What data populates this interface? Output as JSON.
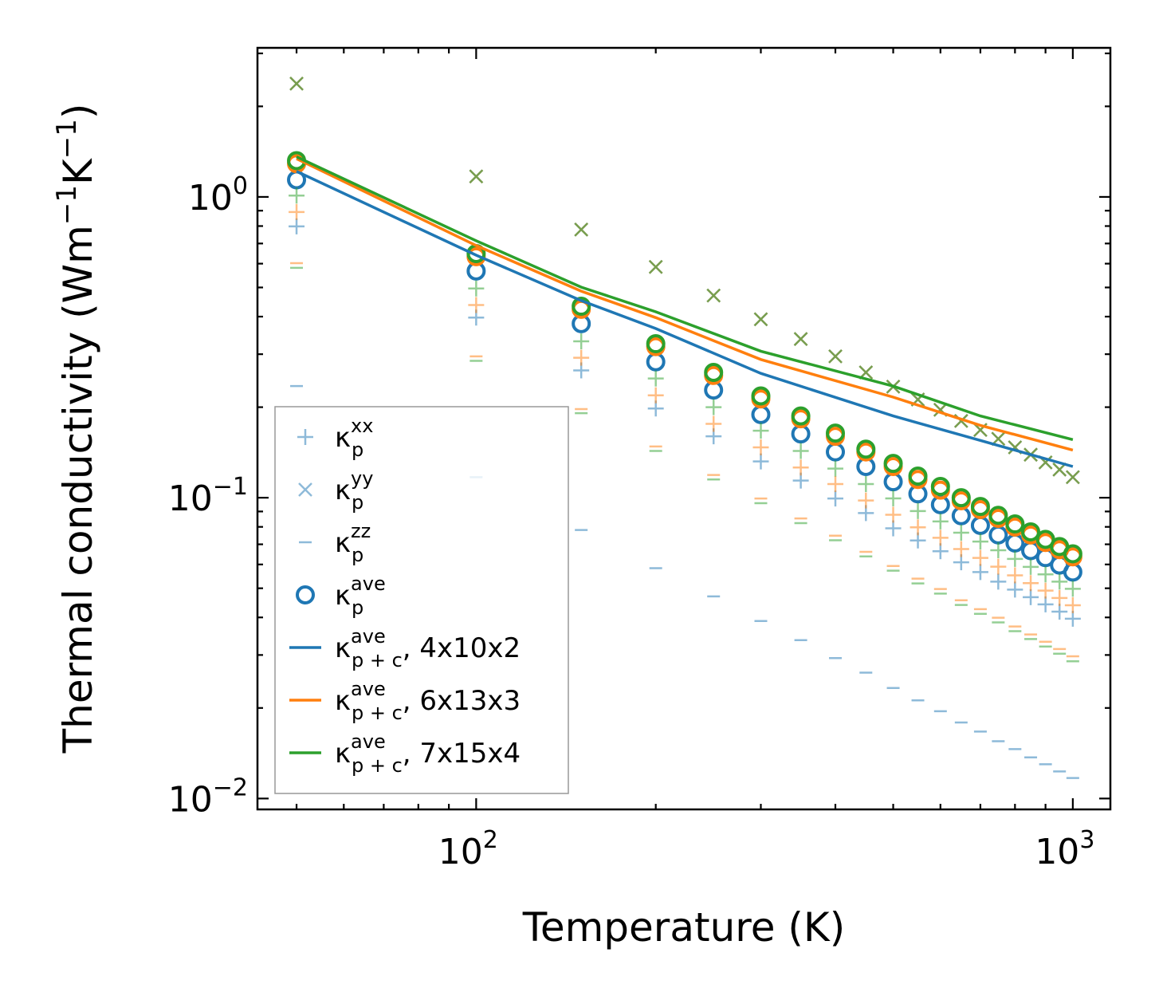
{
  "chart_data": {
    "type": "scatter",
    "title": "",
    "xlabel": "Temperature (K)",
    "ylabel": {
      "main": "Thermal conductivity (Wm",
      "sup1": "−1",
      "mid": "K",
      "sup2": "−1",
      "end": ")"
    },
    "xscale": "log",
    "yscale": "log",
    "xlim": [
      43,
      1156
    ],
    "ylim": [
      0.0092,
      3.13
    ],
    "grid": false,
    "legend_placement": "lower-left",
    "x_ticks": [
      {
        "value": 100,
        "base": "10",
        "exp": "2"
      },
      {
        "value": 1000,
        "base": "10",
        "exp": "3"
      }
    ],
    "y_ticks": [
      {
        "value": 1,
        "base": "10",
        "exp": "0"
      },
      {
        "value": 0.1,
        "base": "10",
        "exp": "−1"
      },
      {
        "value": 0.01,
        "base": "10",
        "exp": "−2"
      }
    ],
    "colors": {
      "blue": "#1f77b4",
      "orange": "#ff7f0e",
      "green": "#2ca02c"
    },
    "x": [
      50,
      100,
      150,
      200,
      250,
      300,
      350,
      400,
      450,
      500,
      550,
      600,
      650,
      700,
      750,
      800,
      850,
      900,
      950,
      1000
    ],
    "series": [
      {
        "name": "kxx 4x10x2",
        "color": "blue",
        "marker": "plus",
        "values": [
          0.798,
          0.397,
          0.265,
          0.198,
          0.16,
          0.132,
          0.114,
          0.0994,
          0.0889,
          0.0791,
          0.0721,
          0.0664,
          0.061,
          0.0566,
          0.0526,
          0.0495,
          0.0467,
          0.0442,
          0.0418,
          0.0396
        ]
      },
      {
        "name": "kyy 4x10x2",
        "color": "blue",
        "marker": "x",
        "values": [
          2.38,
          1.17,
          0.779,
          0.585,
          0.47,
          0.392,
          0.337,
          0.295,
          0.261,
          0.234,
          0.212,
          0.196,
          0.18,
          0.168,
          0.157,
          0.147,
          0.139,
          0.131,
          0.124,
          0.117
        ]
      },
      {
        "name": "kzz 4x10x2",
        "color": "blue",
        "marker": "dash",
        "values": [
          0.235,
          0.117,
          0.0781,
          0.0583,
          0.047,
          0.0389,
          0.0336,
          0.0293,
          0.0262,
          0.0233,
          0.0212,
          0.0195,
          0.0179,
          0.0167,
          0.0155,
          0.0146,
          0.0137,
          0.013,
          0.0123,
          0.0117
        ]
      },
      {
        "name": "kave 4x10x2",
        "color": "blue",
        "marker": "circle",
        "values": [
          1.14,
          0.567,
          0.379,
          0.283,
          0.228,
          0.189,
          0.163,
          0.142,
          0.127,
          0.113,
          0.103,
          0.0948,
          0.0871,
          0.0809,
          0.0752,
          0.0707,
          0.0667,
          0.0632,
          0.0597,
          0.0566
        ]
      },
      {
        "name": "kxx 6x13x3",
        "color": "orange",
        "marker": "plus",
        "values": [
          0.891,
          0.437,
          0.292,
          0.219,
          0.176,
          0.147,
          0.126,
          0.111,
          0.0979,
          0.0878,
          0.0797,
          0.0736,
          0.0675,
          0.0631,
          0.059,
          0.0552,
          0.052,
          0.0491,
          0.0464,
          0.0439
        ]
      },
      {
        "name": "kyy 6x13x3",
        "color": "orange",
        "marker": "x",
        "values": [
          2.38,
          1.17,
          0.779,
          0.585,
          0.47,
          0.392,
          0.337,
          0.295,
          0.261,
          0.234,
          0.212,
          0.196,
          0.18,
          0.168,
          0.157,
          0.147,
          0.139,
          0.131,
          0.124,
          0.117
        ]
      },
      {
        "name": "kzz 6x13x3",
        "color": "orange",
        "marker": "dash",
        "values": [
          0.602,
          0.295,
          0.197,
          0.148,
          0.119,
          0.0994,
          0.0853,
          0.0748,
          0.0661,
          0.0593,
          0.0538,
          0.0497,
          0.0456,
          0.0426,
          0.0399,
          0.0373,
          0.0351,
          0.0332,
          0.0314,
          0.0297
        ]
      },
      {
        "name": "kave 6x13x3",
        "color": "orange",
        "marker": "circle",
        "values": [
          1.29,
          0.633,
          0.423,
          0.318,
          0.255,
          0.213,
          0.183,
          0.16,
          0.142,
          0.127,
          0.115,
          0.106,
          0.0977,
          0.0913,
          0.0854,
          0.0799,
          0.0752,
          0.071,
          0.0672,
          0.0636
        ]
      },
      {
        "name": "kxx 7x15x4",
        "color": "green",
        "marker": "plus",
        "values": [
          1.01,
          0.496,
          0.331,
          0.249,
          0.2,
          0.167,
          0.143,
          0.125,
          0.111,
          0.0995,
          0.0903,
          0.0834,
          0.0765,
          0.0715,
          0.0669,
          0.0626,
          0.0589,
          0.0556,
          0.0526,
          0.0498
        ]
      },
      {
        "name": "kyy 7x15x4",
        "color": "green",
        "marker": "x",
        "values": [
          2.38,
          1.17,
          0.779,
          0.585,
          0.47,
          0.392,
          0.337,
          0.295,
          0.261,
          0.234,
          0.212,
          0.196,
          0.18,
          0.168,
          0.157,
          0.147,
          0.139,
          0.131,
          0.124,
          0.117
        ]
      },
      {
        "name": "kzz 7x15x4",
        "color": "green",
        "marker": "dash",
        "values": [
          0.581,
          0.285,
          0.191,
          0.143,
          0.115,
          0.0959,
          0.0823,
          0.0722,
          0.0638,
          0.0572,
          0.0519,
          0.048,
          0.044,
          0.0411,
          0.0385,
          0.036,
          0.0339,
          0.032,
          0.0303,
          0.0286
        ]
      },
      {
        "name": "kave 7x15x4",
        "color": "green",
        "marker": "circle",
        "values": [
          1.32,
          0.648,
          0.433,
          0.325,
          0.261,
          0.218,
          0.187,
          0.164,
          0.145,
          0.13,
          0.118,
          0.109,
          0.1,
          0.0935,
          0.0874,
          0.0818,
          0.077,
          0.0727,
          0.0688,
          0.0651
        ]
      }
    ],
    "lines": {
      "x": [
        50,
        100,
        150,
        200,
        300,
        500,
        700,
        1000
      ],
      "series": [
        {
          "name": "kp+c ave 4x10x2",
          "color": "blue",
          "values": [
            1.216,
            0.64,
            0.452,
            0.365,
            0.259,
            0.187,
            0.155,
            0.127
          ]
        },
        {
          "name": "kp+c ave 6x13x3",
          "color": "orange",
          "values": [
            1.34,
            0.689,
            0.486,
            0.397,
            0.288,
            0.216,
            0.174,
            0.144
          ]
        },
        {
          "name": "kp+c ave 7x15x4",
          "color": "green",
          "values": [
            1.36,
            0.715,
            0.501,
            0.415,
            0.307,
            0.235,
            0.187,
            0.156
          ]
        }
      ]
    },
    "legend": [
      {
        "marker": "plus",
        "color": "blue",
        "base": "κ",
        "sub": "p",
        "sup": "xx",
        "suffix": ""
      },
      {
        "marker": "x",
        "color": "blue",
        "base": "κ",
        "sub": "p",
        "sup": "yy",
        "suffix": ""
      },
      {
        "marker": "dash",
        "color": "blue",
        "base": "κ",
        "sub": "p",
        "sup": "zz",
        "suffix": ""
      },
      {
        "marker": "circle",
        "color": "blue",
        "base": "κ",
        "sub": "p",
        "sup": "ave",
        "suffix": ""
      },
      {
        "marker": "line",
        "color": "blue",
        "base": "κ",
        "sub": "p + c",
        "sup": "ave",
        "suffix": ", 4x10x2"
      },
      {
        "marker": "line",
        "color": "orange",
        "base": "κ",
        "sub": "p + c",
        "sup": "ave",
        "suffix": ", 6x13x3"
      },
      {
        "marker": "line",
        "color": "green",
        "base": "κ",
        "sub": "p + c",
        "sup": "ave",
        "suffix": ", 7x15x4"
      }
    ]
  }
}
